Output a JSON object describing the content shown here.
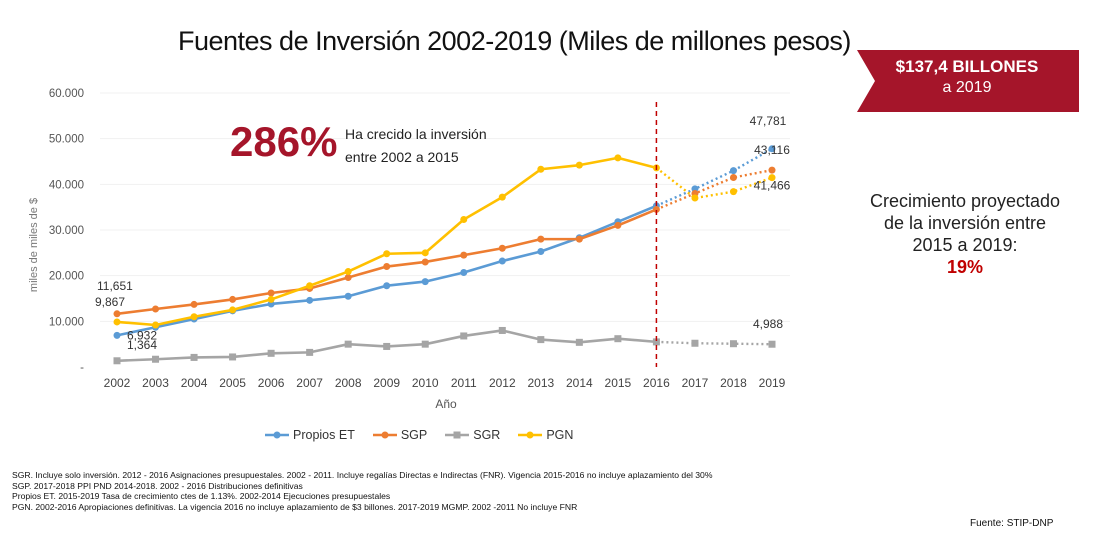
{
  "title": "Fuentes de Inversión 2002-2019 (Miles de millones pesos)",
  "badge": {
    "line1": "$137,4 BILLONES",
    "line2": "a 2019",
    "color": "#a5152a"
  },
  "highlight": {
    "value": "286%",
    "line1": "Ha crecido la inversión",
    "line2": "entre 2002 a 2015"
  },
  "side_note": {
    "line1": "Crecimiento proyectado",
    "line2": "de la inversión entre",
    "line3": "2015 a 2019:",
    "value": "19%"
  },
  "footnotes": [
    "SGR. Incluye solo inversión. 2012 - 2016 Asignaciones presupuestales. 2002 - 2011. Incluye regalías Directas e Indirectas (FNR). Vigencia 2015-2016 no incluye aplazamiento del 30%",
    "SGP. 2017-2018 PPI PND 2014-2018. 2002 - 2016 Distribuciones definitivas",
    "Propios ET. 2015-2019 Tasa de crecimiento ctes de 1.13%. 2002-2014 Ejecuciones presupuestales",
    "PGN. 2002-2016 Apropiaciones definitivas. La vigencia 2016 no incluye aplazamiento de $3 billones. 2017-2019 MGMP. 2002 -2011 No incluye FNR"
  ],
  "source": "Fuente: STIP-DNP",
  "chart_data": {
    "type": "line",
    "xlabel": "Año",
    "ylabel": "miles de miles de $",
    "categories": [
      "2002",
      "2003",
      "2004",
      "2005",
      "2006",
      "2007",
      "2008",
      "2009",
      "2010",
      "2011",
      "2012",
      "2013",
      "2014",
      "2015",
      "2016",
      "2017",
      "2018",
      "2019"
    ],
    "yticks": [
      "-",
      "10.000",
      "20.000",
      "30.000",
      "40.000",
      "50.000",
      "60.000"
    ],
    "ylim": [
      0,
      60000
    ],
    "projection_start": "2016",
    "series": [
      {
        "name": "Propios ET",
        "color": "#5b9bd5",
        "values": [
          6932,
          8700,
          10500,
          12300,
          13800,
          14600,
          15500,
          17800,
          18700,
          20700,
          23200,
          25300,
          28300,
          31800,
          35300,
          39000,
          43000,
          47781
        ]
      },
      {
        "name": "SGP",
        "color": "#ed7d31",
        "values": [
          11651,
          12700,
          13700,
          14800,
          16200,
          17200,
          19600,
          22000,
          23000,
          24500,
          26000,
          28000,
          28000,
          31000,
          34500,
          38000,
          41500,
          43116
        ]
      },
      {
        "name": "SGR",
        "color": "#a5a5a5",
        "values": [
          1364,
          1700,
          2100,
          2200,
          3000,
          3200,
          5000,
          4500,
          5000,
          6800,
          8000,
          6000,
          5400,
          6200,
          5500,
          5200,
          5100,
          4988
        ]
      },
      {
        "name": "PGN",
        "color": "#ffc000",
        "values": [
          9867,
          9200,
          11000,
          12500,
          14800,
          17800,
          20900,
          24800,
          25000,
          32300,
          37200,
          43300,
          44200,
          45800,
          43600,
          37000,
          38400,
          41466
        ]
      }
    ],
    "data_labels": [
      {
        "series": "SGP",
        "year": "2002",
        "text": "11,651"
      },
      {
        "series": "PGN",
        "year": "2002",
        "text": "9,867"
      },
      {
        "series": "Propios ET",
        "year": "2002",
        "text": "6,932"
      },
      {
        "series": "SGR",
        "year": "2002",
        "text": "1,364"
      },
      {
        "series": "Propios ET",
        "year": "2019",
        "text": "47,781"
      },
      {
        "series": "SGP",
        "year": "2019",
        "text": "43,116"
      },
      {
        "series": "PGN",
        "year": "2019",
        "text": "41,466"
      },
      {
        "series": "SGR",
        "year": "2019",
        "text": "4,988"
      }
    ],
    "legend_position": "bottom"
  }
}
